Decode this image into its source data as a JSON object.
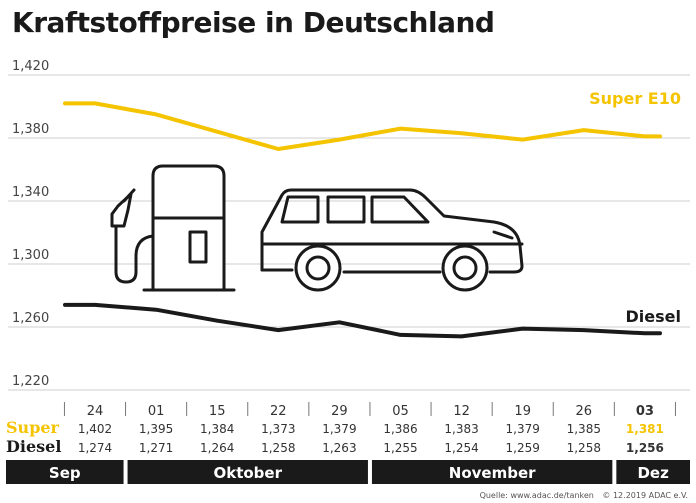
{
  "title": "Kraftstoffpreise in Deutschland",
  "source": {
    "text": "Quelle: www.adac.de/tanken",
    "copyright": "© 12.2019 ADAC e.V."
  },
  "chart_data": {
    "type": "line",
    "ylim": [
      1.22,
      1.42
    ],
    "y_ticks": [
      "1,220",
      "1,260",
      "1,300",
      "1,340",
      "1,380",
      "1,420"
    ],
    "y_tick_values": [
      1.22,
      1.26,
      1.3,
      1.34,
      1.38,
      1.42
    ],
    "grid": true,
    "categories": [
      "24",
      "01",
      "15",
      "22",
      "29",
      "05",
      "12",
      "19",
      "26",
      "03"
    ],
    "months": [
      {
        "label": "Sep",
        "span": 1
      },
      {
        "label": "Oktober",
        "span": 4
      },
      {
        "label": "November",
        "span": 4
      },
      {
        "label": "Dez",
        "span": 1
      }
    ],
    "series": [
      {
        "name": "Super E10",
        "row_label": "Super",
        "color": "#f5c400",
        "values": [
          1.402,
          1.395,
          1.384,
          1.373,
          1.379,
          1.386,
          1.383,
          1.379,
          1.385,
          1.381
        ],
        "value_labels": [
          "1,402",
          "1,395",
          "1,384",
          "1,373",
          "1,379",
          "1,386",
          "1,383",
          "1,379",
          "1,385",
          "1,381"
        ]
      },
      {
        "name": "Diesel",
        "row_label": "Diesel",
        "color": "#1a1a1a",
        "values": [
          1.274,
          1.271,
          1.264,
          1.258,
          1.263,
          1.255,
          1.254,
          1.259,
          1.258,
          1.256
        ],
        "value_labels": [
          "1,274",
          "1,271",
          "1,264",
          "1,258",
          "1,263",
          "1,255",
          "1,254",
          "1,259",
          "1,258",
          "1,256"
        ]
      }
    ]
  }
}
